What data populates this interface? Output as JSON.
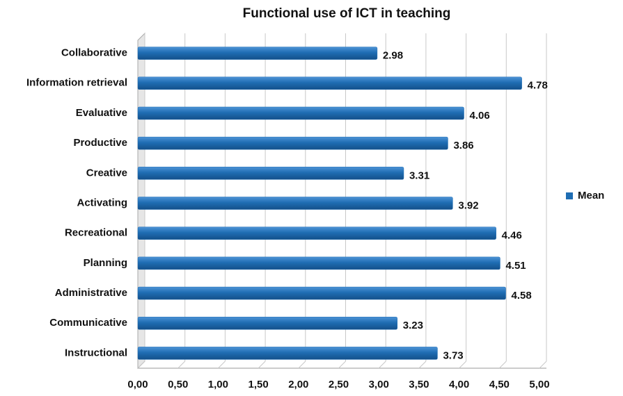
{
  "chart_data": {
    "type": "bar",
    "orientation": "horizontal",
    "title": "Functional use of ICT in teaching",
    "categories": [
      "Collaborative",
      "Information retrieval",
      "Evaluative",
      "Productive",
      "Creative",
      "Activating",
      "Recreational",
      "Planning",
      "Administrative",
      "Communicative",
      "Instructional"
    ],
    "series": [
      {
        "name": "Mean",
        "color": "#1f6db3",
        "values": [
          2.98,
          4.78,
          4.06,
          3.86,
          3.31,
          3.92,
          4.46,
          4.51,
          4.58,
          3.23,
          3.73
        ]
      }
    ],
    "xlim": [
      0,
      5
    ],
    "xticks": [
      {
        "value": 0,
        "label": "0,00"
      },
      {
        "value": 0.5,
        "label": "0,50"
      },
      {
        "value": 1,
        "label": "1,00"
      },
      {
        "value": 1.5,
        "label": "1,50"
      },
      {
        "value": 2,
        "label": "2,00"
      },
      {
        "value": 2.5,
        "label": "2,50"
      },
      {
        "value": 3,
        "label": "3,00"
      },
      {
        "value": 3.5,
        "label": "3,50"
      },
      {
        "value": 4,
        "label": "4,00"
      },
      {
        "value": 4.5,
        "label": "4,50"
      },
      {
        "value": 5,
        "label": "5,00"
      }
    ],
    "grid": true,
    "legend": "right"
  }
}
